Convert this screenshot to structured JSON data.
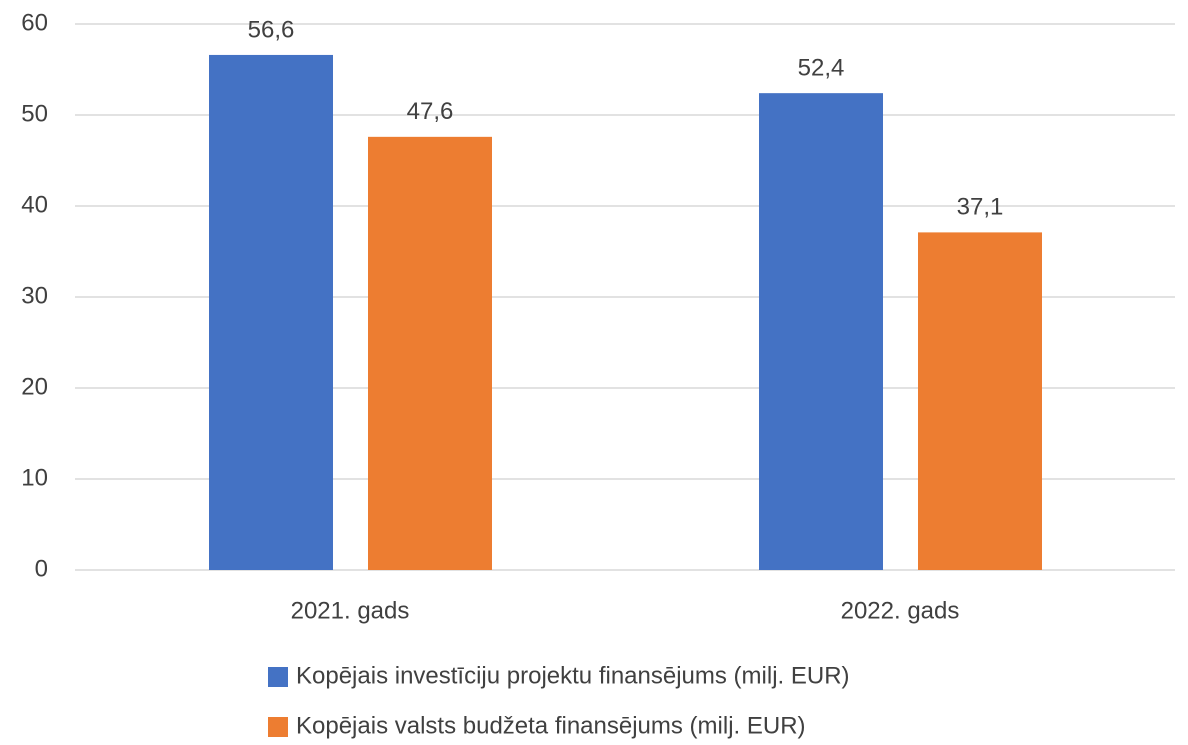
{
  "chart_data": {
    "type": "bar",
    "categories": [
      "2021. gads",
      "2022. gads"
    ],
    "series": [
      {
        "name": "Kopējais investīciju projektu finansējums (milj. EUR)",
        "color": "#4472c4",
        "values": [
          56.6,
          52.4
        ],
        "value_labels": [
          "56,6",
          "52,4"
        ]
      },
      {
        "name": "Kopējais valsts budžeta finansējums (milj. EUR)",
        "color": "#ed7d31",
        "values": [
          47.6,
          37.1
        ],
        "value_labels": [
          "47,6",
          "37,1"
        ]
      }
    ],
    "ylim": [
      0,
      60
    ],
    "yticks": [
      0,
      10,
      20,
      30,
      40,
      50,
      60
    ],
    "grid": true,
    "legend": "bottom"
  }
}
